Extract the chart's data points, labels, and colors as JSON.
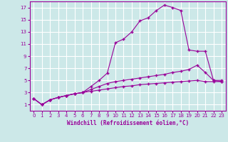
{
  "bg_color": "#cce8e8",
  "grid_color": "#ffffff",
  "line_color": "#990099",
  "xlabel": "Windchill (Refroidissement éolien,°C)",
  "xlim": [
    -0.5,
    23.5
  ],
  "ylim": [
    0,
    18
  ],
  "xticks": [
    0,
    1,
    2,
    3,
    4,
    5,
    6,
    7,
    8,
    9,
    10,
    11,
    12,
    13,
    14,
    15,
    16,
    17,
    18,
    19,
    20,
    21,
    22,
    23
  ],
  "yticks": [
    1,
    3,
    5,
    7,
    9,
    11,
    13,
    15,
    17
  ],
  "line1_x": [
    0,
    1,
    2,
    3,
    4,
    5,
    6,
    7,
    8,
    9,
    10,
    11,
    12,
    13,
    14,
    15,
    16,
    17,
    18,
    19,
    20,
    21,
    22,
    23
  ],
  "line1_y": [
    2.0,
    1.0,
    1.8,
    2.2,
    2.5,
    2.8,
    3.0,
    4.0,
    5.0,
    6.2,
    11.2,
    11.8,
    13.0,
    14.8,
    15.3,
    16.5,
    17.4,
    17.0,
    16.5,
    10.0,
    9.8,
    9.8,
    5.0,
    5.0
  ],
  "line2_x": [
    0,
    1,
    2,
    3,
    4,
    5,
    6,
    7,
    8,
    9,
    10,
    11,
    12,
    13,
    14,
    15,
    16,
    17,
    18,
    19,
    20,
    21,
    22,
    23
  ],
  "line2_y": [
    2.0,
    1.0,
    1.8,
    2.2,
    2.5,
    2.8,
    3.0,
    3.5,
    4.0,
    4.5,
    4.8,
    5.0,
    5.2,
    5.4,
    5.6,
    5.8,
    6.0,
    6.3,
    6.5,
    6.8,
    7.5,
    6.3,
    5.0,
    4.8
  ],
  "line3_x": [
    0,
    1,
    2,
    3,
    4,
    5,
    6,
    7,
    8,
    9,
    10,
    11,
    12,
    13,
    14,
    15,
    16,
    17,
    18,
    19,
    20,
    21,
    22,
    23
  ],
  "line3_y": [
    2.0,
    1.0,
    1.8,
    2.2,
    2.5,
    2.8,
    3.0,
    3.2,
    3.4,
    3.6,
    3.8,
    4.0,
    4.1,
    4.3,
    4.4,
    4.5,
    4.6,
    4.7,
    4.8,
    4.9,
    5.0,
    4.8,
    4.8,
    4.8
  ]
}
